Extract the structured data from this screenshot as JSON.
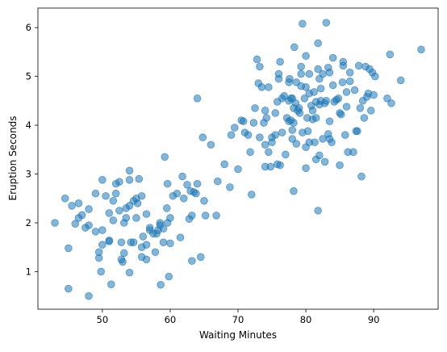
{
  "chart_data": {
    "type": "scatter",
    "title": "",
    "xlabel": "Waiting Minutes",
    "ylabel": "Eruption Seconds",
    "xlim": [
      40.5,
      99.5
    ],
    "ylim": [
      0.23,
      6.4
    ],
    "x_ticks": [
      50,
      60,
      70,
      80,
      90
    ],
    "y_ticks": [
      1,
      2,
      3,
      4,
      5,
      6
    ],
    "grid": false,
    "legend": "none",
    "marker_color": "#1f77b4",
    "marker_alpha": 0.55,
    "series": [
      {
        "points": [
          [
            43,
            2.0
          ],
          [
            44.5,
            2.5
          ],
          [
            45,
            1.48
          ],
          [
            45,
            0.65
          ],
          [
            45.5,
            2.35
          ],
          [
            46,
            1.98
          ],
          [
            46.5,
            2.4
          ],
          [
            46.5,
            2.1
          ],
          [
            47,
            2.16
          ],
          [
            47.5,
            1.9
          ],
          [
            48,
            2.28
          ],
          [
            48,
            1.95
          ],
          [
            48,
            0.5
          ],
          [
            49,
            2.6
          ],
          [
            49,
            1.82
          ],
          [
            49.5,
            1.28
          ],
          [
            49.5,
            1.4
          ],
          [
            49.8,
            1.0
          ],
          [
            50,
            2.88
          ],
          [
            50,
            1.85
          ],
          [
            50,
            1.55
          ],
          [
            50.5,
            2.55
          ],
          [
            51,
            2.2
          ],
          [
            51,
            1.62
          ],
          [
            51,
            1.64
          ],
          [
            51.3,
            0.74
          ],
          [
            51.6,
            2.05
          ],
          [
            51.6,
            2.45
          ],
          [
            52,
            2.8
          ],
          [
            52,
            2.6
          ],
          [
            52.5,
            2.84
          ],
          [
            52.5,
            2.25
          ],
          [
            52.8,
            1.6
          ],
          [
            52.8,
            1.25
          ],
          [
            53,
            1.2
          ],
          [
            53.2,
            1.38
          ],
          [
            53.2,
            2.0
          ],
          [
            53.5,
            2.1
          ],
          [
            53.5,
            2.3
          ],
          [
            54,
            2.88
          ],
          [
            54,
            3.07
          ],
          [
            54,
            2.35
          ],
          [
            54,
            0.98
          ],
          [
            54.2,
            1.6
          ],
          [
            54.6,
            1.6
          ],
          [
            54.6,
            2.45
          ],
          [
            55,
            2.5
          ],
          [
            55,
            2.1
          ],
          [
            55.2,
            2.4
          ],
          [
            55.4,
            2.9
          ],
          [
            55.8,
            2.55
          ],
          [
            55.8,
            1.5
          ],
          [
            55.8,
            1.3
          ],
          [
            56,
            1.72
          ],
          [
            56.5,
            1.25
          ],
          [
            56.5,
            2.18
          ],
          [
            56.5,
            1.55
          ],
          [
            57,
            1.85
          ],
          [
            57,
            1.9
          ],
          [
            57.5,
            1.78
          ],
          [
            57.8,
            1.4
          ],
          [
            58,
            1.78
          ],
          [
            58.2,
            1.85
          ],
          [
            58.5,
            2.0
          ],
          [
            58.5,
            1.95
          ],
          [
            58.6,
            0.73
          ],
          [
            59,
            1.6
          ],
          [
            59,
            1.88
          ],
          [
            59.2,
            3.35
          ],
          [
            59.5,
            2.3
          ],
          [
            59.6,
            2.0
          ],
          [
            59.6,
            2.8
          ],
          [
            59.8,
            0.9
          ],
          [
            60,
            1.58
          ],
          [
            60,
            2.1
          ],
          [
            60.4,
            2.55
          ],
          [
            61,
            2.6
          ],
          [
            61.5,
            1.7
          ],
          [
            61.8,
            2.95
          ],
          [
            62,
            2.5
          ],
          [
            62.5,
            2.78
          ],
          [
            62.8,
            2.08
          ],
          [
            63,
            2.65
          ],
          [
            63.2,
            2.15
          ],
          [
            63.2,
            1.22
          ],
          [
            63.5,
            2.63
          ],
          [
            63.8,
            2.6
          ],
          [
            64,
            2.8
          ],
          [
            64,
            4.55
          ],
          [
            64.5,
            1.3
          ],
          [
            64.8,
            3.75
          ],
          [
            65,
            2.45
          ],
          [
            65.2,
            2.15
          ],
          [
            66,
            3.6
          ],
          [
            66.8,
            2.15
          ],
          [
            67,
            2.85
          ],
          [
            68,
            3.2
          ],
          [
            68.8,
            2.73
          ],
          [
            69,
            3.8
          ],
          [
            69.5,
            3.95
          ],
          [
            70,
            3.1
          ],
          [
            70.5,
            4.1
          ],
          [
            70.8,
            4.08
          ],
          [
            71,
            3.85
          ],
          [
            71.5,
            3.8
          ],
          [
            71.8,
            3.45
          ],
          [
            72,
            2.58
          ],
          [
            72.3,
            4.05
          ],
          [
            72.5,
            4.35
          ],
          [
            72.8,
            5.35
          ],
          [
            73,
            4.86
          ],
          [
            73.2,
            3.75
          ],
          [
            73.2,
            5.2
          ],
          [
            73.5,
            4.78
          ],
          [
            73.8,
            4.05
          ],
          [
            74,
            3.15
          ],
          [
            74,
            3.6
          ],
          [
            74,
            4.3
          ],
          [
            74.2,
            4.15
          ],
          [
            74.5,
            3.45
          ],
          [
            74.5,
            4.78
          ],
          [
            74.8,
            3.15
          ],
          [
            75,
            3.65
          ],
          [
            75,
            3.75
          ],
          [
            75.5,
            4.25
          ],
          [
            75.5,
            3.8
          ],
          [
            75.8,
            3.2
          ],
          [
            75.8,
            4.48
          ],
          [
            76,
            5.05
          ],
          [
            76,
            4.95
          ],
          [
            76.2,
            3.18
          ],
          [
            76.2,
            5.3
          ],
          [
            76.5,
            4.55
          ],
          [
            76.5,
            3.85
          ],
          [
            76.8,
            4.6
          ],
          [
            77,
            3.4
          ],
          [
            77.2,
            4.15
          ],
          [
            77.5,
            4.5
          ],
          [
            77.5,
            4.08
          ],
          [
            77.5,
            4.88
          ],
          [
            77.6,
            4.95
          ],
          [
            77.8,
            4.1
          ],
          [
            77.8,
            4.55
          ],
          [
            78,
            3.72
          ],
          [
            78,
            3.9
          ],
          [
            78,
            4.55
          ],
          [
            78.2,
            4.05
          ],
          [
            78.2,
            4.35
          ],
          [
            78.2,
            2.65
          ],
          [
            78.3,
            5.6
          ],
          [
            78.5,
            4.45
          ],
          [
            78.6,
            3.62
          ],
          [
            78.6,
            4.88
          ],
          [
            78.8,
            4.3
          ],
          [
            79,
            4.35
          ],
          [
            79.1,
            4.25
          ],
          [
            79.3,
            5.2
          ],
          [
            79.3,
            4.8
          ],
          [
            79.3,
            5.05
          ],
          [
            79.5,
            6.08
          ],
          [
            79.5,
            3.85
          ],
          [
            79.8,
            4.55
          ],
          [
            80,
            3.55
          ],
          [
            80,
            3.12
          ],
          [
            80,
            4.78
          ],
          [
            80,
            5.42
          ],
          [
            80.2,
            4.15
          ],
          [
            80.3,
            3.88
          ],
          [
            80.5,
            4.65
          ],
          [
            80.5,
            3.65
          ],
          [
            80.5,
            5.05
          ],
          [
            80.8,
            4.4
          ],
          [
            81,
            4.12
          ],
          [
            81,
            4.3
          ],
          [
            81.2,
            4.68
          ],
          [
            81.3,
            3.65
          ],
          [
            81.5,
            4.15
          ],
          [
            81.5,
            3.3
          ],
          [
            81.5,
            4.48
          ],
          [
            81.8,
            5.68
          ],
          [
            81.8,
            2.25
          ],
          [
            81.8,
            5.15
          ],
          [
            82,
            4.42
          ],
          [
            82,
            3.38
          ],
          [
            82,
            4.95
          ],
          [
            82.2,
            4.5
          ],
          [
            82.2,
            4.75
          ],
          [
            82.5,
            3.72
          ],
          [
            82.5,
            5.05
          ],
          [
            82.8,
            4.45
          ],
          [
            82.8,
            3.25
          ],
          [
            83,
            6.1
          ],
          [
            83,
            4.5
          ],
          [
            83.3,
            3.82
          ],
          [
            83.3,
            5.18
          ],
          [
            83.5,
            4.08
          ],
          [
            83.5,
            5.08
          ],
          [
            83.5,
            3.72
          ],
          [
            83.8,
            3.65
          ],
          [
            84,
            4.82
          ],
          [
            84,
            5.38
          ],
          [
            84.2,
            4.48
          ],
          [
            84.5,
            4.52
          ],
          [
            84.8,
            4.55
          ],
          [
            85,
            4.25
          ],
          [
            85,
            3.18
          ],
          [
            85.2,
            4.22
          ],
          [
            85.4,
            4.88
          ],
          [
            85.5,
            5.22
          ],
          [
            85.5,
            5.3
          ],
          [
            85.8,
            3.8
          ],
          [
            86,
            4.68
          ],
          [
            86,
            4.38
          ],
          [
            86.2,
            3.45
          ],
          [
            86.5,
            5.08
          ],
          [
            86.5,
            4.9
          ],
          [
            87,
            3.45
          ],
          [
            87.2,
            4.72
          ],
          [
            87.4,
            3.88
          ],
          [
            87.6,
            3.88
          ],
          [
            87.8,
            5.22
          ],
          [
            88,
            4.35
          ],
          [
            88.2,
            2.95
          ],
          [
            88.4,
            4.5
          ],
          [
            88.6,
            4.15
          ],
          [
            88.8,
            5.2
          ],
          [
            89,
            4.58
          ],
          [
            89.2,
            4.65
          ],
          [
            89.4,
            5.15
          ],
          [
            89.6,
            4.3
          ],
          [
            89.8,
            5.08
          ],
          [
            90,
            4.62
          ],
          [
            90.2,
            5.0
          ],
          [
            92,
            4.55
          ],
          [
            92.4,
            5.45
          ],
          [
            92.6,
            4.45
          ],
          [
            94,
            4.92
          ],
          [
            97,
            5.55
          ]
        ]
      }
    ]
  }
}
